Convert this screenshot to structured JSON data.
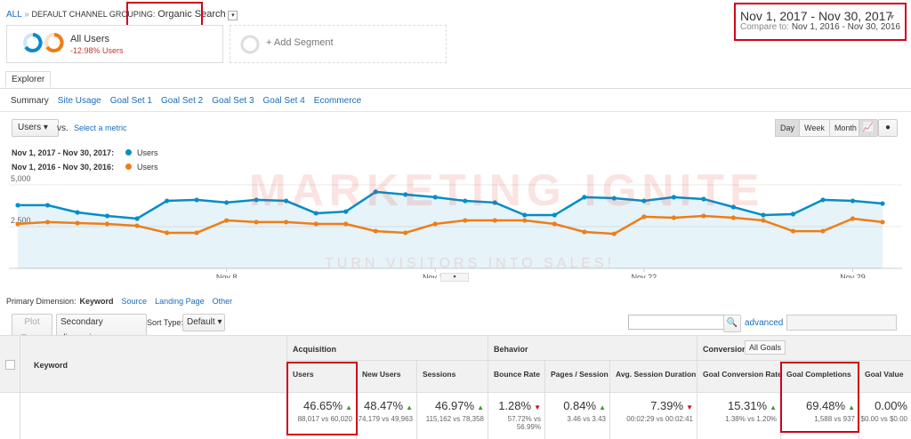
{
  "breadcrumb": {
    "root": "ALL",
    "separator": "»",
    "dimension": "DEFAULT CHANNEL GROUPING:",
    "value": "Organic Search"
  },
  "date_range": {
    "current": "Nov 1, 2017 - Nov 30, 2017",
    "compare_label": "Compare to:",
    "compare": "Nov 1, 2016 - Nov 30, 2016"
  },
  "segments": {
    "name": "All Users",
    "change": "-12.98% Users",
    "add": "+ Add Segment"
  },
  "tab": "Explorer",
  "subtabs": [
    "Summary",
    "Site Usage",
    "Goal Set 1",
    "Goal Set 2",
    "Goal Set 3",
    "Goal Set 4",
    "Ecommerce"
  ],
  "metric_selector": {
    "metric": "Users",
    "vs": "vs.",
    "select": "Select a metric"
  },
  "granularity": [
    "Day",
    "Week",
    "Month"
  ],
  "chart_data": {
    "type": "line",
    "categories": [
      null,
      null,
      null,
      null,
      null,
      null,
      null,
      "Nov 8",
      null,
      null,
      null,
      null,
      null,
      null,
      "Nov 15",
      null,
      null,
      null,
      null,
      null,
      null,
      "Nov 22",
      null,
      null,
      null,
      null,
      null,
      null,
      "Nov 29",
      null
    ],
    "series": [
      {
        "name": "Users",
        "period": "Nov 1, 2017 - Nov 30, 2017:",
        "color": "#058dc7",
        "values": [
          3780,
          3780,
          3350,
          3140,
          2980,
          4040,
          4100,
          3940,
          4100,
          4040,
          3300,
          3400,
          4580,
          4420,
          4260,
          4040,
          3940,
          3190,
          3190,
          4260,
          4200,
          4040,
          4260,
          4150,
          3670,
          3190,
          3250,
          4100,
          4040,
          3880
        ]
      },
      {
        "name": "Users",
        "period": "Nov 1, 2016 - Nov 30, 2016:",
        "color": "#ed7e17",
        "values": [
          2660,
          2770,
          2710,
          2660,
          2550,
          2130,
          2130,
          2870,
          2770,
          2770,
          2660,
          2660,
          2230,
          2130,
          2660,
          2870,
          2870,
          2870,
          2660,
          2180,
          2070,
          3090,
          3030,
          3140,
          3030,
          2870,
          2230,
          2230,
          2980,
          2770
        ]
      }
    ],
    "ylim": [
      0,
      5500
    ],
    "yticks": [
      {
        "value": 2500,
        "label": "2,500"
      },
      {
        "value": 5000,
        "label": "5,000"
      }
    ],
    "grid": true
  },
  "watermark": {
    "brand": "MARKETING IGNITE",
    "tagline": "TURN VISITORS INTO SALES!"
  },
  "primary_dimension": {
    "label": "Primary Dimension:",
    "options": [
      "Keyword",
      "Source",
      "Landing Page",
      "Other"
    ]
  },
  "toolbar": {
    "plot_rows": "Plot Rows",
    "secondary": "Secondary dimension",
    "sort_label": "Sort Type:",
    "sort": "Default",
    "advanced": "advanced"
  },
  "table": {
    "dimension": "Keyword",
    "groups": [
      {
        "label": "Acquisition",
        "columns": [
          {
            "header": "Users",
            "change": "46.65%",
            "trend": "up",
            "detail": "88,017 vs 60,020"
          },
          {
            "header": "New Users",
            "change": "48.47%",
            "trend": "up",
            "detail": "74,179 vs 49,963"
          },
          {
            "header": "Sessions",
            "change": "46.97%",
            "trend": "up",
            "detail": "115,162 vs 78,358"
          }
        ]
      },
      {
        "label": "Behavior",
        "columns": [
          {
            "header": "Bounce Rate",
            "change": "1.28%",
            "trend": "down-bad",
            "detail": "57.72% vs 56.99%"
          },
          {
            "header": "Pages / Session",
            "change": "0.84%",
            "trend": "up",
            "detail": "3.46 vs 3.43"
          },
          {
            "header": "Avg. Session Duration",
            "change": "7.39%",
            "trend": "down-bad",
            "detail": "00:02:29 vs 00:02:41"
          }
        ]
      },
      {
        "label": "Conversions",
        "filter": "All Goals",
        "columns": [
          {
            "header": "Goal Conversion Rate",
            "change": "15.31%",
            "trend": "up",
            "detail": "1.38% vs 1.20%"
          },
          {
            "header": "Goal Completions",
            "change": "69.48%",
            "trend": "up",
            "detail": "1,588 vs 937"
          },
          {
            "header": "Goal Value",
            "change": "0.00%",
            "trend": "none",
            "detail": "$0.00 vs $0.00"
          }
        ]
      }
    ]
  }
}
